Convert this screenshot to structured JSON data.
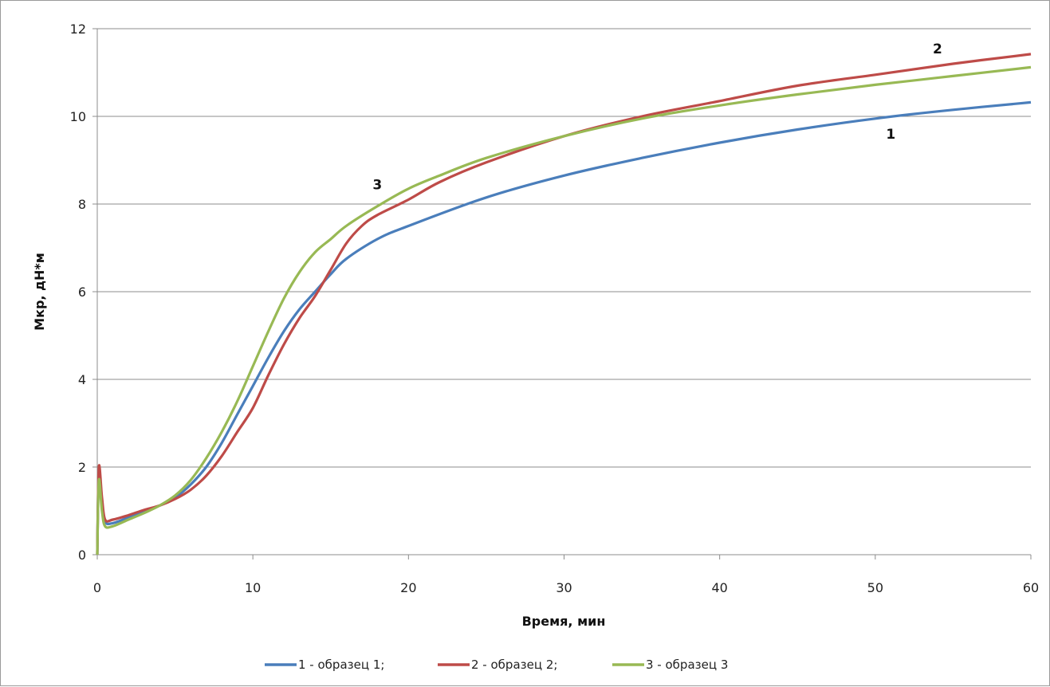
{
  "chart_data": {
    "type": "line",
    "title": "",
    "xlabel": "Время, мин",
    "ylabel": "Мкр, дН*м",
    "xlim": [
      0,
      60
    ],
    "ylim": [
      0,
      12
    ],
    "x_ticks": [
      "0",
      "10",
      "20",
      "30",
      "40",
      "50",
      "60"
    ],
    "y_ticks": [
      "0",
      "2",
      "4",
      "6",
      "8",
      "10",
      "12"
    ],
    "grid": "horizontal",
    "legend": "bottom",
    "series": [
      {
        "name": "1 - образец 1;",
        "color": "#4a7ebb",
        "points": [
          [
            0,
            0
          ],
          [
            0.1,
            1.9
          ],
          [
            0.3,
            1.2
          ],
          [
            0.5,
            0.75
          ],
          [
            1,
            0.72
          ],
          [
            2,
            0.85
          ],
          [
            3,
            1.0
          ],
          [
            4,
            1.12
          ],
          [
            5,
            1.3
          ],
          [
            6,
            1.6
          ],
          [
            7,
            2.0
          ],
          [
            8,
            2.55
          ],
          [
            9,
            3.2
          ],
          [
            10,
            3.85
          ],
          [
            11,
            4.5
          ],
          [
            12,
            5.1
          ],
          [
            13,
            5.6
          ],
          [
            14,
            6.0
          ],
          [
            15,
            6.4
          ],
          [
            16,
            6.75
          ],
          [
            18,
            7.2
          ],
          [
            20,
            7.5
          ],
          [
            25,
            8.15
          ],
          [
            30,
            8.65
          ],
          [
            35,
            9.05
          ],
          [
            40,
            9.4
          ],
          [
            45,
            9.7
          ],
          [
            50,
            9.95
          ],
          [
            55,
            10.15
          ],
          [
            60,
            10.32
          ]
        ],
        "label": "1"
      },
      {
        "name": "2 - образец 2;",
        "color": "#be4b48",
        "points": [
          [
            0,
            0
          ],
          [
            0.1,
            2.0
          ],
          [
            0.3,
            1.3
          ],
          [
            0.5,
            0.8
          ],
          [
            1,
            0.8
          ],
          [
            2,
            0.9
          ],
          [
            3,
            1.02
          ],
          [
            4,
            1.12
          ],
          [
            5,
            1.27
          ],
          [
            6,
            1.48
          ],
          [
            7,
            1.8
          ],
          [
            8,
            2.25
          ],
          [
            9,
            2.8
          ],
          [
            10,
            3.35
          ],
          [
            11,
            4.1
          ],
          [
            12,
            4.8
          ],
          [
            13,
            5.4
          ],
          [
            14,
            5.9
          ],
          [
            15,
            6.5
          ],
          [
            16,
            7.1
          ],
          [
            17,
            7.5
          ],
          [
            18,
            7.75
          ],
          [
            20,
            8.1
          ],
          [
            22,
            8.5
          ],
          [
            25,
            8.95
          ],
          [
            30,
            9.55
          ],
          [
            35,
            10.0
          ],
          [
            40,
            10.35
          ],
          [
            45,
            10.7
          ],
          [
            50,
            10.95
          ],
          [
            55,
            11.2
          ],
          [
            60,
            11.42
          ]
        ],
        "label": "2"
      },
      {
        "name": "3 - образец 3",
        "color": "#98b954",
        "points": [
          [
            0,
            0
          ],
          [
            0.1,
            1.7
          ],
          [
            0.3,
            1.0
          ],
          [
            0.5,
            0.65
          ],
          [
            1,
            0.65
          ],
          [
            2,
            0.8
          ],
          [
            3,
            0.95
          ],
          [
            4,
            1.12
          ],
          [
            5,
            1.35
          ],
          [
            6,
            1.7
          ],
          [
            7,
            2.2
          ],
          [
            8,
            2.8
          ],
          [
            9,
            3.5
          ],
          [
            10,
            4.3
          ],
          [
            11,
            5.1
          ],
          [
            12,
            5.85
          ],
          [
            13,
            6.45
          ],
          [
            14,
            6.9
          ],
          [
            15,
            7.2
          ],
          [
            16,
            7.5
          ],
          [
            18,
            7.95
          ],
          [
            20,
            8.35
          ],
          [
            22,
            8.65
          ],
          [
            25,
            9.05
          ],
          [
            30,
            9.55
          ],
          [
            35,
            9.95
          ],
          [
            40,
            10.25
          ],
          [
            45,
            10.5
          ],
          [
            50,
            10.72
          ],
          [
            55,
            10.92
          ],
          [
            60,
            11.12
          ]
        ],
        "label": "3"
      }
    ]
  }
}
